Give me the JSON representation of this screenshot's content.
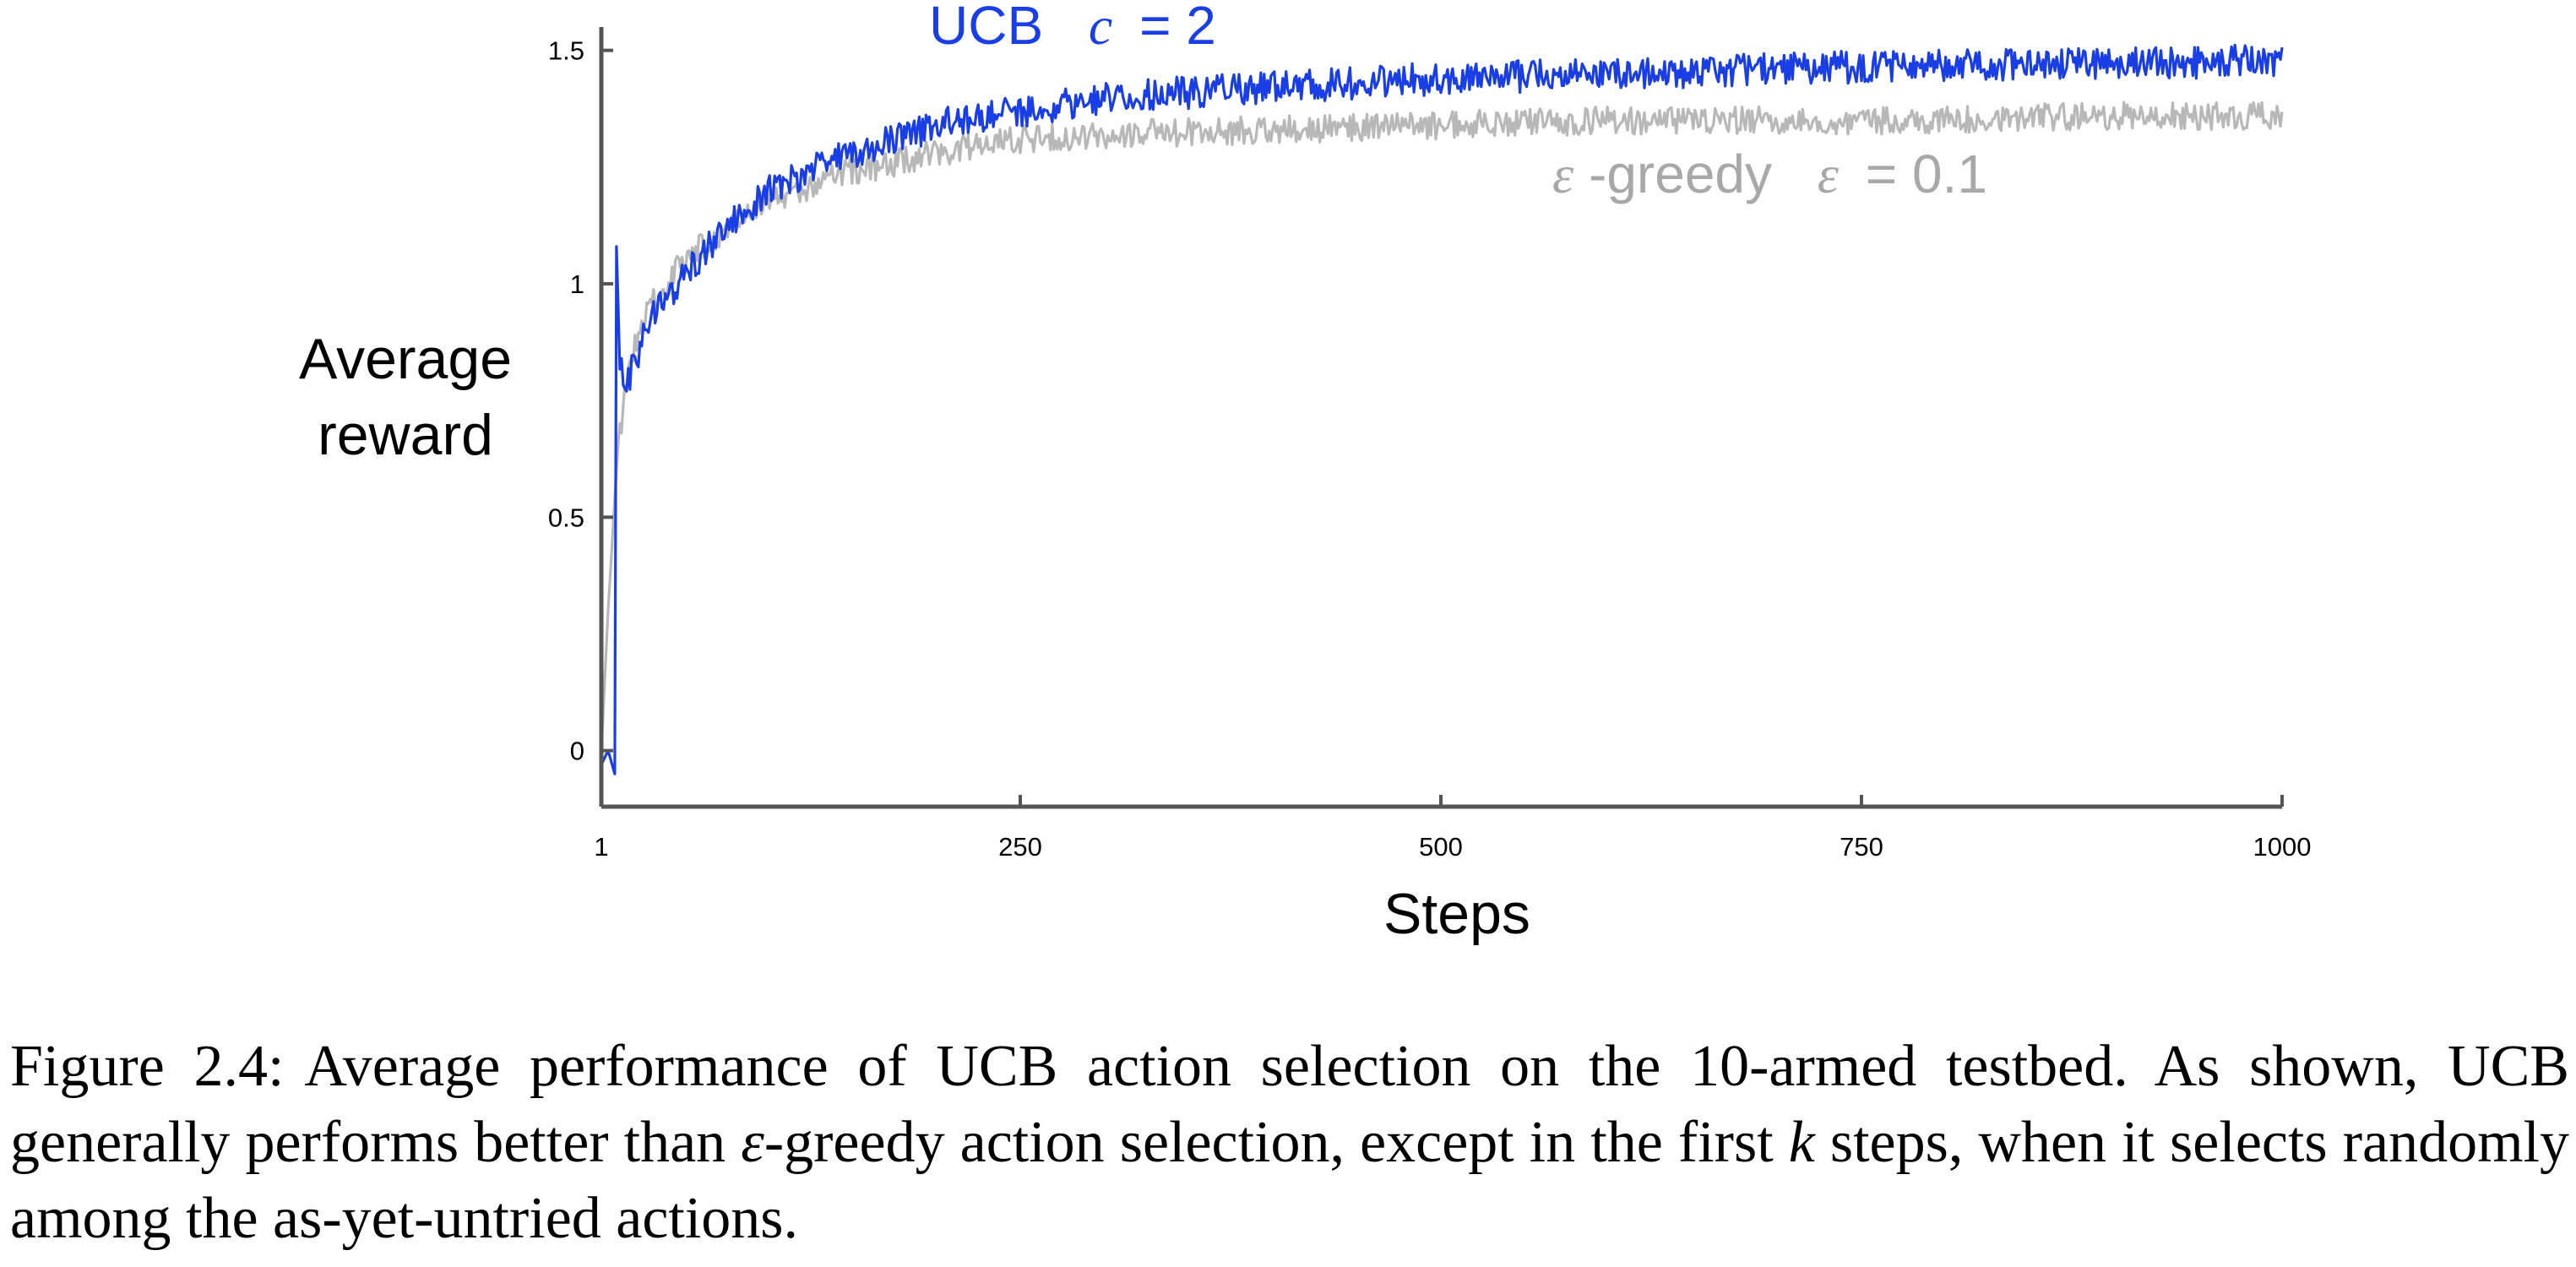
{
  "chart_data": {
    "type": "line",
    "ylabel_lines": [
      "Average",
      "reward"
    ],
    "xlabel": "Steps",
    "xlim": [
      1,
      1000
    ],
    "ylim": [
      -0.12,
      1.55
    ],
    "xticks": [
      {
        "value": 1,
        "label": "1"
      },
      {
        "value": 250,
        "label": "250"
      },
      {
        "value": 500,
        "label": "500"
      },
      {
        "value": 750,
        "label": "750"
      },
      {
        "value": 1000,
        "label": "1000"
      }
    ],
    "yticks": [
      {
        "value": 0,
        "label": "0"
      },
      {
        "value": 0.5,
        "label": "0.5"
      },
      {
        "value": 1,
        "label": "1"
      },
      {
        "value": 1.5,
        "label": "1.5"
      }
    ],
    "grid": false,
    "legend": "inline labels",
    "series": [
      {
        "label_parts": [
          "UCB",
          "c",
          "= 2"
        ],
        "color": "#1a3ee6",
        "shape": [
          [
            1,
            -0.03
          ],
          [
            5,
            0.0
          ],
          [
            9,
            -0.05
          ],
          [
            10,
            1.08
          ],
          [
            12,
            0.85
          ],
          [
            15,
            0.78
          ],
          [
            20,
            0.82
          ],
          [
            30,
            0.92
          ],
          [
            50,
            1.02
          ],
          [
            75,
            1.12
          ],
          [
            100,
            1.2
          ],
          [
            150,
            1.28
          ],
          [
            200,
            1.34
          ],
          [
            250,
            1.37
          ],
          [
            300,
            1.4
          ],
          [
            350,
            1.41
          ],
          [
            400,
            1.42
          ],
          [
            500,
            1.44
          ],
          [
            600,
            1.45
          ],
          [
            700,
            1.46
          ],
          [
            800,
            1.47
          ],
          [
            900,
            1.47
          ],
          [
            1000,
            1.48
          ]
        ],
        "noise": 0.035
      },
      {
        "label_parts": [
          "ε",
          "-greedy",
          "ε",
          "= 0.1"
        ],
        "color": "#b8b8b8",
        "shape": [
          [
            1,
            0.0
          ],
          [
            5,
            0.3
          ],
          [
            10,
            0.6
          ],
          [
            15,
            0.78
          ],
          [
            20,
            0.86
          ],
          [
            30,
            0.95
          ],
          [
            50,
            1.05
          ],
          [
            75,
            1.12
          ],
          [
            100,
            1.18
          ],
          [
            150,
            1.24
          ],
          [
            200,
            1.28
          ],
          [
            250,
            1.31
          ],
          [
            300,
            1.32
          ],
          [
            400,
            1.33
          ],
          [
            500,
            1.34
          ],
          [
            600,
            1.35
          ],
          [
            700,
            1.35
          ],
          [
            800,
            1.35
          ],
          [
            900,
            1.36
          ],
          [
            1000,
            1.36
          ]
        ],
        "noise": 0.03
      }
    ]
  },
  "caption": {
    "label": "Figure 2.4:",
    "text_before_eps": "Average performance of UCB action selection on the 10-armed testbed. As shown, UCB generally performs better than ",
    "eps": "ε",
    "text_mid": "-greedy action selection, except in the first ",
    "k": "k",
    "text_end": " steps, when it selects randomly among the as-yet-untried actions."
  }
}
